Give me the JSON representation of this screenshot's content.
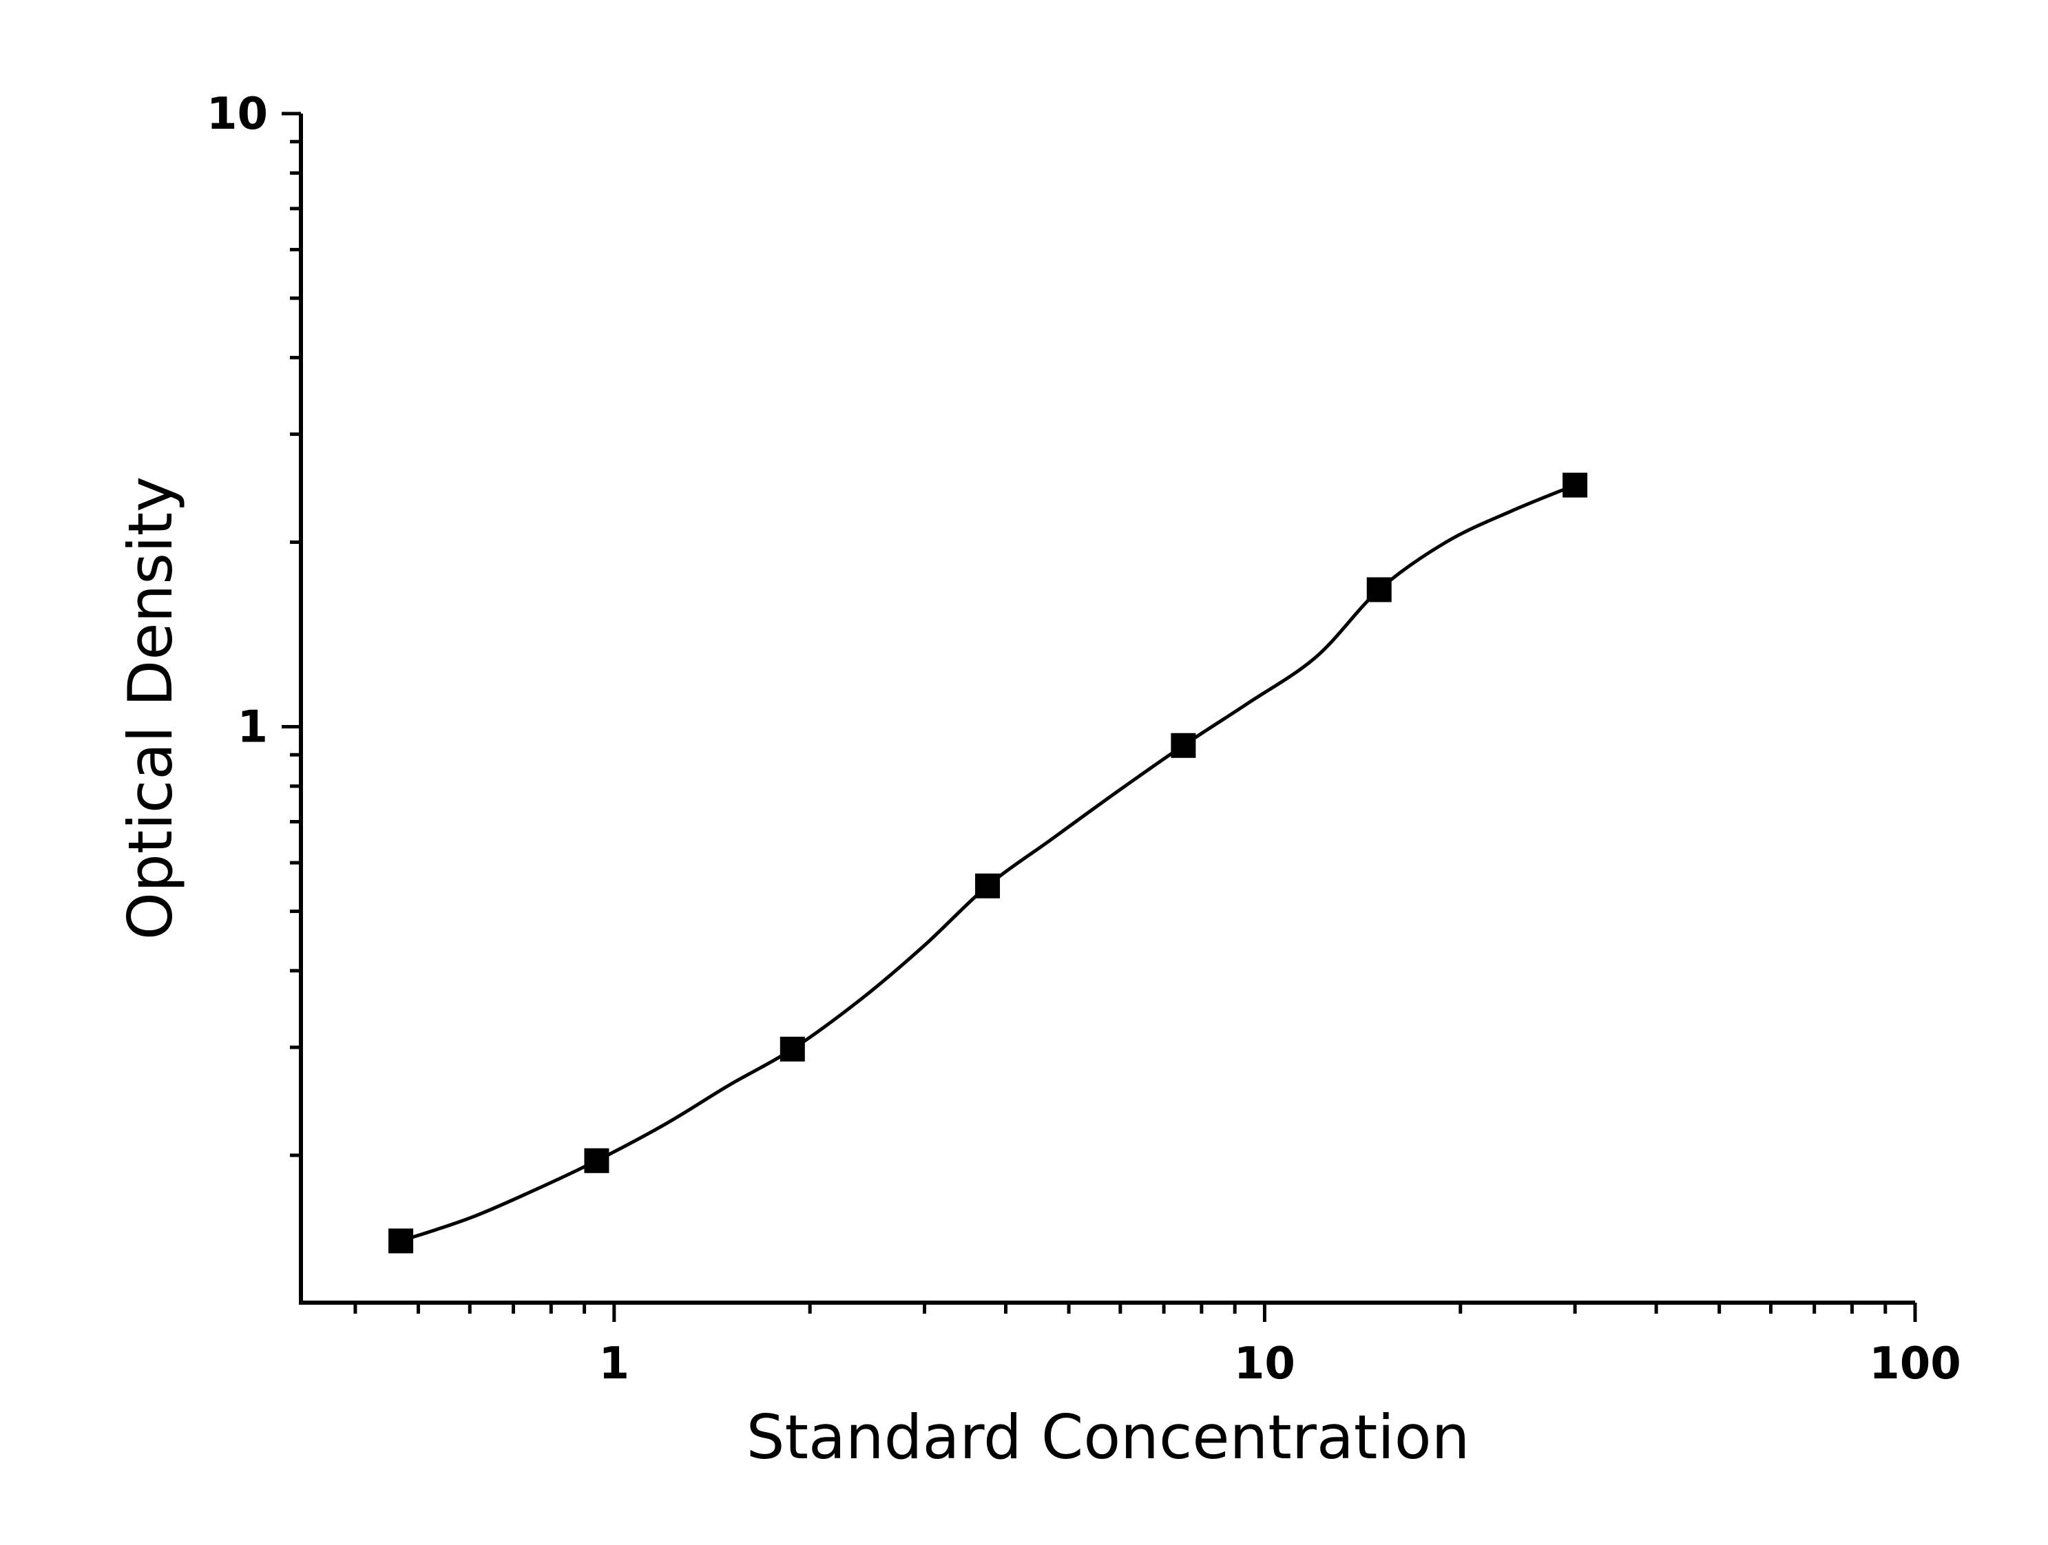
{
  "chart_data": {
    "type": "scatter",
    "title": "",
    "xlabel": "Standard Concentration",
    "ylabel": "Optical Density",
    "xscale": "log",
    "yscale": "log",
    "xlim": [
      0.33,
      100
    ],
    "ylim": [
      0.115,
      10
    ],
    "x_ticks": [
      {
        "value": 1,
        "label": "1"
      },
      {
        "value": 10,
        "label": "10"
      },
      {
        "value": 100,
        "label": "100"
      }
    ],
    "y_ticks": [
      {
        "value": 1,
        "label": "1"
      },
      {
        "value": 10,
        "label": "10"
      }
    ],
    "grid": false,
    "legend": "none",
    "marker": "square",
    "color": "#000000",
    "series": [
      {
        "x": [
          0.47,
          0.94,
          1.88,
          3.75,
          7.5,
          15,
          30
        ],
        "y": [
          0.145,
          0.196,
          0.298,
          0.55,
          0.932,
          1.673,
          2.478
        ]
      }
    ],
    "fit_curve": {
      "x": [
        0.47,
        0.6,
        0.75,
        0.94,
        1.2,
        1.5,
        1.88,
        2.4,
        3.0,
        3.75,
        4.7,
        6.0,
        7.5,
        9.4,
        12,
        15,
        19,
        24,
        30
      ],
      "y": [
        0.145,
        0.158,
        0.175,
        0.196,
        0.225,
        0.26,
        0.298,
        0.36,
        0.44,
        0.55,
        0.655,
        0.79,
        0.932,
        1.09,
        1.3,
        1.673,
        2.0,
        2.25,
        2.478
      ]
    }
  }
}
